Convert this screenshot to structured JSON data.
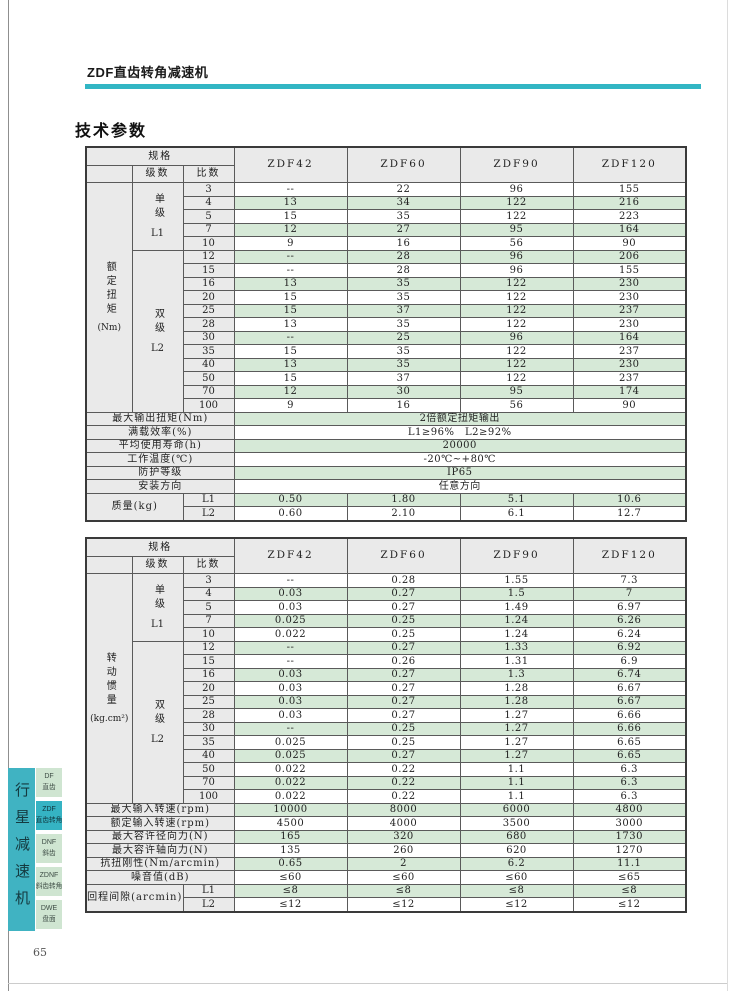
{
  "page": {
    "header_title": "ZDF直齿转角减速机",
    "section_title": "技术参数",
    "page_number": "65"
  },
  "colors": {
    "accent_teal": "#32b6c4",
    "row_green": "#d6e9d7",
    "header_gray": "#eaeaea",
    "tab_green": "#cfe5d1",
    "sidebar_teal": "#40b3c2"
  },
  "sidebar": {
    "vertical_label": "行星减速机",
    "tabs": [
      {
        "code": "DF",
        "name": "直齿"
      },
      {
        "code": "ZDF",
        "name": "直齿转角"
      },
      {
        "code": "DNF",
        "name": "斜齿"
      },
      {
        "code": "ZDNF",
        "name": "斜齿转角"
      },
      {
        "code": "DWE",
        "name": "盘面"
      }
    ]
  },
  "table1": {
    "head": {
      "spec": "规格",
      "stage": "级数",
      "ratio": "比数",
      "models": [
        "ZDF42",
        "ZDF60",
        "ZDF90",
        "ZDF120"
      ]
    },
    "group": {
      "vertical": "额定扭矩",
      "unit": "(Nm)"
    },
    "l1": {
      "label": "单级",
      "sub": "L1",
      "rows": [
        {
          "ratio": "3",
          "values": [
            "--",
            "22",
            "96",
            "155"
          ]
        },
        {
          "ratio": "4",
          "values": [
            "13",
            "34",
            "122",
            "216"
          ]
        },
        {
          "ratio": "5",
          "values": [
            "15",
            "35",
            "122",
            "223"
          ]
        },
        {
          "ratio": "7",
          "values": [
            "12",
            "27",
            "95",
            "164"
          ]
        },
        {
          "ratio": "10",
          "values": [
            "9",
            "16",
            "56",
            "90"
          ]
        }
      ]
    },
    "l2": {
      "label": "双级",
      "sub": "L2",
      "rows": [
        {
          "ratio": "12",
          "values": [
            "--",
            "28",
            "96",
            "206"
          ]
        },
        {
          "ratio": "15",
          "values": [
            "--",
            "28",
            "96",
            "155"
          ]
        },
        {
          "ratio": "16",
          "values": [
            "13",
            "35",
            "122",
            "230"
          ]
        },
        {
          "ratio": "20",
          "values": [
            "15",
            "35",
            "122",
            "230"
          ]
        },
        {
          "ratio": "25",
          "values": [
            "15",
            "37",
            "122",
            "237"
          ]
        },
        {
          "ratio": "28",
          "values": [
            "13",
            "35",
            "122",
            "230"
          ]
        },
        {
          "ratio": "30",
          "values": [
            "--",
            "25",
            "96",
            "164"
          ]
        },
        {
          "ratio": "35",
          "values": [
            "15",
            "35",
            "122",
            "237"
          ]
        },
        {
          "ratio": "40",
          "values": [
            "13",
            "35",
            "122",
            "230"
          ]
        },
        {
          "ratio": "50",
          "values": [
            "15",
            "37",
            "122",
            "237"
          ]
        },
        {
          "ratio": "70",
          "values": [
            "12",
            "30",
            "95",
            "174"
          ]
        },
        {
          "ratio": "100",
          "values": [
            "9",
            "16",
            "56",
            "90"
          ]
        }
      ]
    },
    "footer_span": [
      {
        "label": "最大输出扭矩(Nm)",
        "value": "2倍额定扭矩输出"
      },
      {
        "label": "满载效率(%)",
        "value": "L1≥96% L2≥92%"
      },
      {
        "label": "平均使用寿命(h)",
        "value": "20000"
      },
      {
        "label": "工作温度(℃)",
        "value": "-20℃~+80℃"
      },
      {
        "label": "防护等级",
        "value": "IP65"
      },
      {
        "label": "安装方向",
        "value": "任意方向"
      }
    ],
    "tail": {
      "label": "质量(kg)",
      "rows": [
        {
          "sub": "L1",
          "values": [
            "0.50",
            "1.80",
            "5.1",
            "10.6"
          ]
        },
        {
          "sub": "L2",
          "values": [
            "0.60",
            "2.10",
            "6.1",
            "12.7"
          ]
        }
      ]
    }
  },
  "table2": {
    "head": {
      "spec": "规格",
      "stage": "级数",
      "ratio": "比数",
      "models": [
        "ZDF42",
        "ZDF60",
        "ZDF90",
        "ZDF120"
      ]
    },
    "group": {
      "vertical": "转动惯量",
      "unit": "(kg.cm²)"
    },
    "l1": {
      "label": "单级",
      "sub": "L1",
      "rows": [
        {
          "ratio": "3",
          "values": [
            "--",
            "0.28",
            "1.55",
            "7.3"
          ]
        },
        {
          "ratio": "4",
          "values": [
            "0.03",
            "0.27",
            "1.5",
            "7"
          ]
        },
        {
          "ratio": "5",
          "values": [
            "0.03",
            "0.27",
            "1.49",
            "6.97"
          ]
        },
        {
          "ratio": "7",
          "values": [
            "0.025",
            "0.25",
            "1.24",
            "6.26"
          ]
        },
        {
          "ratio": "10",
          "values": [
            "0.022",
            "0.25",
            "1.24",
            "6.24"
          ]
        }
      ]
    },
    "l2": {
      "label": "双级",
      "sub": "L2",
      "rows": [
        {
          "ratio": "12",
          "values": [
            "--",
            "0.27",
            "1.33",
            "6.92"
          ]
        },
        {
          "ratio": "15",
          "values": [
            "--",
            "0.26",
            "1.31",
            "6.9"
          ]
        },
        {
          "ratio": "16",
          "values": [
            "0.03",
            "0.27",
            "1.3",
            "6.74"
          ]
        },
        {
          "ratio": "20",
          "values": [
            "0.03",
            "0.27",
            "1.28",
            "6.67"
          ]
        },
        {
          "ratio": "25",
          "values": [
            "0.03",
            "0.27",
            "1.28",
            "6.67"
          ]
        },
        {
          "ratio": "28",
          "values": [
            "0.03",
            "0.27",
            "1.27",
            "6.66"
          ]
        },
        {
          "ratio": "30",
          "values": [
            "--",
            "0.25",
            "1.27",
            "6.66"
          ]
        },
        {
          "ratio": "35",
          "values": [
            "0.025",
            "0.25",
            "1.27",
            "6.65"
          ]
        },
        {
          "ratio": "40",
          "values": [
            "0.025",
            "0.27",
            "1.27",
            "6.65"
          ]
        },
        {
          "ratio": "50",
          "values": [
            "0.022",
            "0.22",
            "1.1",
            "6.3"
          ]
        },
        {
          "ratio": "70",
          "values": [
            "0.022",
            "0.22",
            "1.1",
            "6.3"
          ]
        },
        {
          "ratio": "100",
          "values": [
            "0.022",
            "0.22",
            "1.1",
            "6.3"
          ]
        }
      ]
    },
    "footer_vals": [
      {
        "label": "最大输入转速(rpm)",
        "values": [
          "10000",
          "8000",
          "6000",
          "4800"
        ]
      },
      {
        "label": "额定输入转速(rpm)",
        "values": [
          "4500",
          "4000",
          "3500",
          "3000"
        ]
      },
      {
        "label": "最大容许径向力(N)",
        "values": [
          "165",
          "320",
          "680",
          "1730"
        ]
      },
      {
        "label": "最大容许轴向力(N)",
        "values": [
          "135",
          "260",
          "620",
          "1270"
        ]
      },
      {
        "label": "抗扭刚性(Nm/arcmin)",
        "values": [
          "0.65",
          "2",
          "6.2",
          "11.1"
        ]
      },
      {
        "label": "噪音值(dB)",
        "values": [
          "≤60",
          "≤60",
          "≤60",
          "≤65"
        ]
      }
    ],
    "tail": {
      "label": "回程间隙(arcmin)",
      "rows": [
        {
          "sub": "L1",
          "values": [
            "≤8",
            "≤8",
            "≤8",
            "≤8"
          ]
        },
        {
          "sub": "L2",
          "values": [
            "≤12",
            "≤12",
            "≤12",
            "≤12"
          ]
        }
      ]
    }
  }
}
